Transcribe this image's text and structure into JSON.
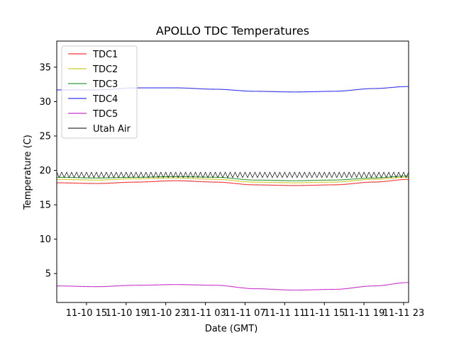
{
  "chart_data": {
    "type": "line",
    "title": "APOLLO TDC Temperatures",
    "xlabel": "Date (GMT)",
    "ylabel": "Temperature (C)",
    "x_unit": "hours since 2022-11-10 12:00 GMT",
    "xlim": [
      0,
      35.5
    ],
    "ylim": [
      0.8,
      38.8
    ],
    "x_ticks": [
      {
        "value": 3,
        "label": "11-10 15"
      },
      {
        "value": 7,
        "label": "11-10 19"
      },
      {
        "value": 11,
        "label": "11-10 23"
      },
      {
        "value": 15,
        "label": "11-11 03"
      },
      {
        "value": 19,
        "label": "11-11 07"
      },
      {
        "value": 23,
        "label": "11-11 11"
      },
      {
        "value": 27,
        "label": "11-11 15"
      },
      {
        "value": 31,
        "label": "11-11 19"
      },
      {
        "value": 35,
        "label": "11-11 23"
      }
    ],
    "y_ticks": [
      {
        "value": 5,
        "label": "5"
      },
      {
        "value": 10,
        "label": "10"
      },
      {
        "value": 15,
        "label": "15"
      },
      {
        "value": 20,
        "label": "20"
      },
      {
        "value": 25,
        "label": "25"
      },
      {
        "value": 30,
        "label": "30"
      },
      {
        "value": 35,
        "label": "35"
      }
    ],
    "grid": false,
    "legend_position": "top-left",
    "series": [
      {
        "name": "TDC1",
        "color": "#ff0000",
        "x": [
          0,
          4,
          8,
          12,
          16,
          20,
          24,
          28,
          32,
          35.5
        ],
        "y": [
          18.2,
          18.1,
          18.3,
          18.5,
          18.3,
          17.9,
          17.8,
          17.9,
          18.3,
          18.7
        ]
      },
      {
        "name": "TDC2",
        "color": "#bfbf00",
        "x": [
          0,
          4,
          8,
          12,
          16,
          20,
          24,
          28,
          32,
          35.5
        ],
        "y": [
          18.7,
          18.6,
          18.8,
          18.9,
          18.7,
          18.3,
          18.2,
          18.3,
          18.7,
          19.0
        ]
      },
      {
        "name": "TDC3",
        "color": "#008000",
        "x": [
          0,
          4,
          8,
          12,
          16,
          20,
          24,
          28,
          32,
          35.5
        ],
        "y": [
          19.0,
          18.9,
          19.0,
          19.1,
          19.0,
          18.6,
          18.5,
          18.6,
          18.9,
          19.2
        ]
      },
      {
        "name": "TDC4",
        "color": "#0000ff",
        "x": [
          0,
          4,
          8,
          12,
          16,
          20,
          24,
          28,
          32,
          35.5
        ],
        "y": [
          31.7,
          31.7,
          32.0,
          32.0,
          31.8,
          31.5,
          31.4,
          31.5,
          31.9,
          32.2
        ]
      },
      {
        "name": "TDC5",
        "color": "#bf00bf",
        "x": [
          0,
          4,
          8,
          12,
          16,
          20,
          24,
          28,
          32,
          35.5
        ],
        "y": [
          3.2,
          3.1,
          3.3,
          3.4,
          3.3,
          2.8,
          2.6,
          2.7,
          3.2,
          3.7
        ]
      },
      {
        "name": "Utah Air",
        "color": "#000000",
        "x_start": 0,
        "x_end": 35.5,
        "oscillation": {
          "center": 19.35,
          "amplitude": 0.4,
          "period_hours": 0.5
        }
      }
    ]
  }
}
